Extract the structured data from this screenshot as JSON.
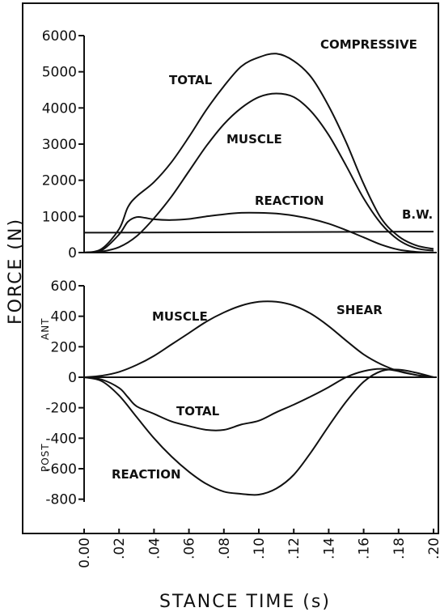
{
  "chart_data": [
    {
      "type": "line",
      "panel": "top",
      "title": "COMPRESSIVE",
      "xlabel": "STANCE TIME (s)",
      "ylabel": "FORCE (N)",
      "xlim": [
        0,
        0.2
      ],
      "ylim": [
        0,
        6000
      ],
      "y_ticks": [
        0,
        1000,
        2000,
        3000,
        4000,
        5000,
        6000
      ],
      "y_tick_labels": [
        "0",
        "1000",
        "2000",
        "3000",
        "4000",
        "5000",
        "6000"
      ],
      "grid": false,
      "series": [
        {
          "name": "TOTAL",
          "x": [
            0,
            0.01,
            0.02,
            0.025,
            0.03,
            0.04,
            0.05,
            0.06,
            0.07,
            0.08,
            0.09,
            0.1,
            0.11,
            0.12,
            0.13,
            0.14,
            0.15,
            0.16,
            0.17,
            0.18,
            0.19,
            0.2
          ],
          "values": [
            0,
            100,
            650,
            1250,
            1550,
            1950,
            2500,
            3200,
            3950,
            4600,
            5150,
            5400,
            5500,
            5300,
            4850,
            4050,
            3050,
            1900,
            950,
            450,
            200,
            100
          ]
        },
        {
          "name": "MUSCLE",
          "x": [
            0,
            0.01,
            0.02,
            0.03,
            0.04,
            0.05,
            0.06,
            0.07,
            0.08,
            0.09,
            0.1,
            0.11,
            0.12,
            0.13,
            0.14,
            0.15,
            0.16,
            0.17,
            0.18,
            0.19,
            0.2
          ],
          "values": [
            0,
            30,
            150,
            450,
            950,
            1550,
            2250,
            2950,
            3550,
            4000,
            4300,
            4400,
            4300,
            3900,
            3250,
            2400,
            1500,
            800,
            350,
            120,
            50
          ]
        },
        {
          "name": "REACTION",
          "x": [
            0,
            0.01,
            0.02,
            0.025,
            0.03,
            0.035,
            0.04,
            0.05,
            0.06,
            0.07,
            0.08,
            0.09,
            0.1,
            0.11,
            0.12,
            0.13,
            0.14,
            0.15,
            0.16,
            0.17,
            0.18,
            0.19,
            0.2
          ],
          "values": [
            0,
            60,
            500,
            850,
            980,
            960,
            920,
            900,
            930,
            1000,
            1060,
            1100,
            1100,
            1080,
            1020,
            930,
            800,
            620,
            420,
            220,
            80,
            20,
            0
          ]
        },
        {
          "name": "B.W.",
          "x": [
            0,
            0.2
          ],
          "values": [
            550,
            580
          ]
        }
      ],
      "annotations": [
        "TOTAL",
        "MUSCLE",
        "REACTION",
        "B.W."
      ]
    },
    {
      "type": "line",
      "panel": "bottom",
      "title": "SHEAR",
      "xlabel": "STANCE TIME (s)",
      "ylabel": "FORCE (N)",
      "xlim": [
        0,
        0.2
      ],
      "ylim": [
        -800,
        600
      ],
      "y_ticks": [
        -800,
        -600,
        -400,
        -200,
        0,
        200,
        400,
        600
      ],
      "y_tick_labels": [
        "-800",
        "-600",
        "-400",
        "-200",
        "0",
        "200",
        "400",
        "600"
      ],
      "x_ticks": [
        0,
        0.02,
        0.04,
        0.06,
        0.08,
        0.1,
        0.12,
        0.14,
        0.16,
        0.18,
        0.2
      ],
      "x_tick_labels": [
        "0.00",
        ".02",
        ".04",
        ".06",
        ".08",
        ".10",
        ".12",
        ".14",
        ".16",
        ".18",
        ".20"
      ],
      "grid": false,
      "side_labels": [
        "ANT",
        "POST"
      ],
      "series": [
        {
          "name": "MUSCLE",
          "x": [
            0,
            0.01,
            0.02,
            0.03,
            0.04,
            0.05,
            0.06,
            0.07,
            0.08,
            0.09,
            0.1,
            0.11,
            0.12,
            0.13,
            0.14,
            0.15,
            0.16,
            0.17,
            0.18,
            0.19,
            0.2
          ],
          "values": [
            0,
            10,
            35,
            80,
            140,
            215,
            290,
            365,
            425,
            470,
            495,
            495,
            470,
            415,
            335,
            240,
            150,
            85,
            40,
            15,
            0
          ]
        },
        {
          "name": "TOTAL",
          "x": [
            0,
            0.01,
            0.02,
            0.025,
            0.03,
            0.04,
            0.05,
            0.06,
            0.07,
            0.08,
            0.09,
            0.1,
            0.11,
            0.12,
            0.13,
            0.14,
            0.15,
            0.16,
            0.17,
            0.18,
            0.19,
            0.2
          ],
          "values": [
            0,
            -15,
            -70,
            -130,
            -190,
            -240,
            -290,
            -320,
            -345,
            -345,
            -310,
            -285,
            -230,
            -180,
            -125,
            -65,
            0,
            40,
            55,
            40,
            15,
            0
          ]
        },
        {
          "name": "REACTION",
          "x": [
            0,
            0.01,
            0.02,
            0.03,
            0.04,
            0.05,
            0.06,
            0.07,
            0.08,
            0.09,
            0.1,
            0.11,
            0.12,
            0.13,
            0.14,
            0.15,
            0.16,
            0.17,
            0.18,
            0.19,
            0.2
          ],
          "values": [
            0,
            -25,
            -120,
            -260,
            -400,
            -520,
            -620,
            -700,
            -750,
            -765,
            -770,
            -730,
            -640,
            -490,
            -320,
            -160,
            -30,
            40,
            50,
            30,
            0
          ]
        }
      ],
      "annotations": [
        "MUSCLE",
        "TOTAL",
        "REACTION",
        "SHEAR"
      ]
    }
  ]
}
